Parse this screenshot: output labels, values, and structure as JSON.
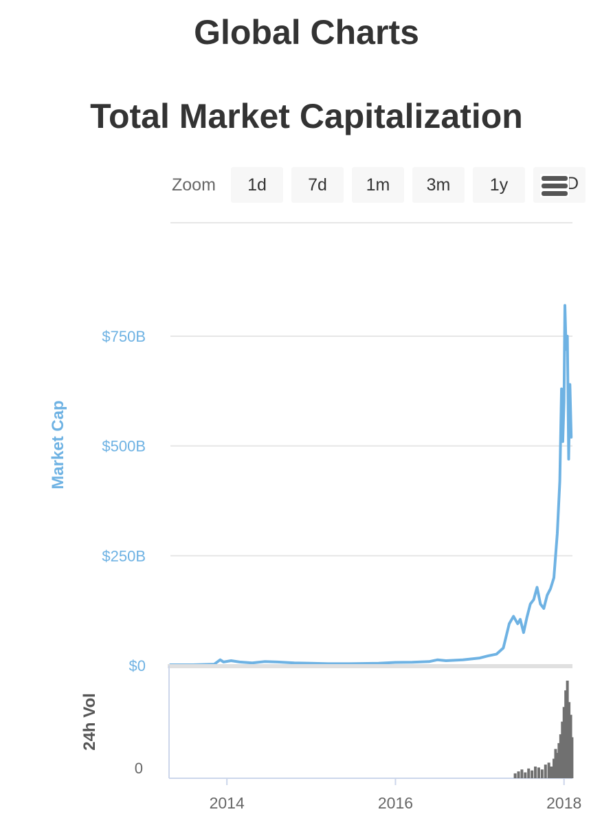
{
  "page": {
    "title": "Global Charts"
  },
  "zoom": {
    "label": "Zoom",
    "buttons": [
      "1d",
      "7d",
      "1m",
      "3m",
      "1y"
    ],
    "partial_button": "D"
  },
  "icons": {
    "menu": "hamburger-menu-icon"
  },
  "colors": {
    "market_cap": "#6eb2e3",
    "volume": "#707070",
    "axis_label": "#6eb2e3",
    "grid": "#e6e6e6"
  },
  "chart_data": [
    {
      "type": "line",
      "title": "Total Market Capitalization",
      "ylabel": "Market Cap",
      "ylim": [
        0,
        750
      ],
      "y_ticks": [
        {
          "value": 0,
          "label": "$0"
        },
        {
          "value": 250,
          "label": "$250B"
        },
        {
          "value": 500,
          "label": "$500B"
        },
        {
          "value": 750,
          "label": "$750B"
        }
      ],
      "x_ticks": [
        {
          "value": 2014.0,
          "label": "2014"
        },
        {
          "value": 2016.0,
          "label": "2016"
        },
        {
          "value": 2018.0,
          "label": "2018"
        }
      ],
      "xlim": [
        2013.33,
        2018.1
      ],
      "grid": true,
      "series": [
        {
          "values": [
            [
              2013.33,
              1.5
            ],
            [
              2013.6,
              1.6
            ],
            [
              2013.85,
              3
            ],
            [
              2013.92,
              13
            ],
            [
              2013.96,
              8
            ],
            [
              2014.05,
              11
            ],
            [
              2014.15,
              8
            ],
            [
              2014.3,
              6
            ],
            [
              2014.45,
              9
            ],
            [
              2014.6,
              8
            ],
            [
              2014.8,
              6
            ],
            [
              2015.0,
              5
            ],
            [
              2015.2,
              4
            ],
            [
              2015.4,
              4
            ],
            [
              2015.6,
              4.5
            ],
            [
              2015.8,
              5
            ],
            [
              2016.0,
              7
            ],
            [
              2016.2,
              7.5
            ],
            [
              2016.4,
              9
            ],
            [
              2016.5,
              13
            ],
            [
              2016.6,
              11
            ],
            [
              2016.8,
              13
            ],
            [
              2017.0,
              17
            ],
            [
              2017.1,
              22
            ],
            [
              2017.2,
              26
            ],
            [
              2017.28,
              40
            ],
            [
              2017.35,
              95
            ],
            [
              2017.4,
              112
            ],
            [
              2017.45,
              95
            ],
            [
              2017.48,
              105
            ],
            [
              2017.52,
              75
            ],
            [
              2017.56,
              110
            ],
            [
              2017.6,
              140
            ],
            [
              2017.64,
              150
            ],
            [
              2017.68,
              178
            ],
            [
              2017.72,
              140
            ],
            [
              2017.76,
              130
            ],
            [
              2017.8,
              160
            ],
            [
              2017.84,
              175
            ],
            [
              2017.88,
              200
            ],
            [
              2017.92,
              300
            ],
            [
              2017.95,
              420
            ],
            [
              2017.97,
              630
            ],
            [
              2017.985,
              510
            ],
            [
              2018.0,
              600
            ],
            [
              2018.01,
              820
            ],
            [
              2018.025,
              720
            ],
            [
              2018.04,
              750
            ],
            [
              2018.055,
              470
            ],
            [
              2018.07,
              640
            ],
            [
              2018.085,
              520
            ]
          ]
        }
      ]
    },
    {
      "type": "bar",
      "ylabel": "24h Vol",
      "y_ticks": [
        {
          "value": 0,
          "label": "0"
        }
      ],
      "xlim": [
        2013.33,
        2018.1
      ],
      "series": [
        {
          "values": [
            [
              2017.42,
              0.05
            ],
            [
              2017.46,
              0.07
            ],
            [
              2017.5,
              0.09
            ],
            [
              2017.54,
              0.06
            ],
            [
              2017.58,
              0.1
            ],
            [
              2017.62,
              0.08
            ],
            [
              2017.66,
              0.12
            ],
            [
              2017.7,
              0.11
            ],
            [
              2017.74,
              0.09
            ],
            [
              2017.78,
              0.14
            ],
            [
              2017.82,
              0.16
            ],
            [
              2017.85,
              0.12
            ],
            [
              2017.88,
              0.2
            ],
            [
              2017.9,
              0.3
            ],
            [
              2017.92,
              0.26
            ],
            [
              2017.94,
              0.36
            ],
            [
              2017.96,
              0.45
            ],
            [
              2017.98,
              0.58
            ],
            [
              2018.0,
              0.73
            ],
            [
              2018.02,
              0.9
            ],
            [
              2018.04,
              1.0
            ],
            [
              2018.06,
              0.78
            ],
            [
              2018.08,
              0.65
            ],
            [
              2018.095,
              0.42
            ]
          ]
        }
      ]
    }
  ]
}
